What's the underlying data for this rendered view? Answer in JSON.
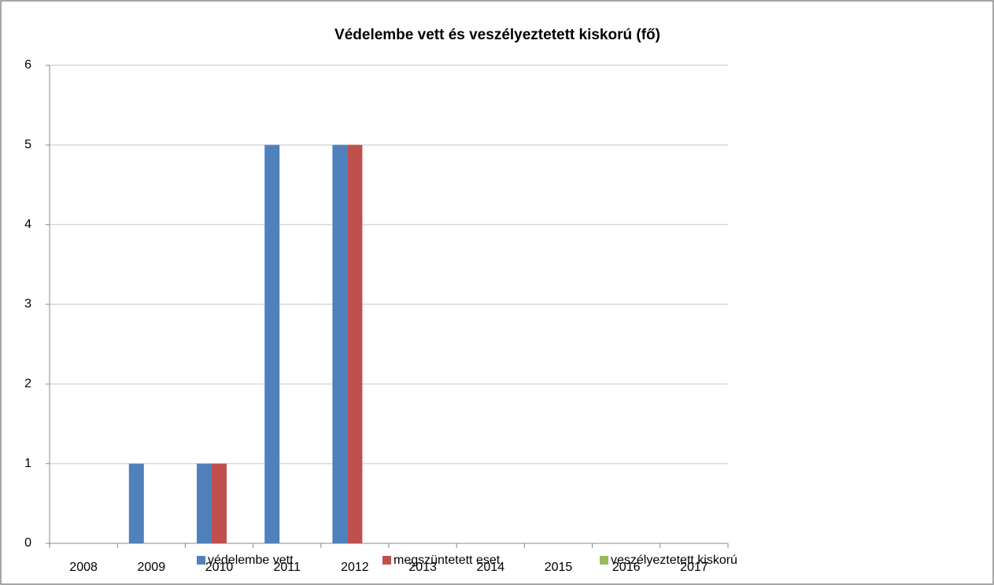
{
  "chart_data": {
    "type": "bar",
    "title": "Védelembe vett és veszélyeztetett kiskorú (fő)",
    "categories": [
      "2008",
      "2009",
      "2010",
      "2011",
      "2012",
      "2013",
      "2014",
      "2015",
      "2016",
      "2017"
    ],
    "series": [
      {
        "name": "védelembe vett",
        "color": "#4f81bd",
        "values": [
          0,
          1,
          1,
          5,
          5,
          0,
          0,
          0,
          0,
          0
        ]
      },
      {
        "name": "megszüntetett eset",
        "color": "#c0504d",
        "values": [
          0,
          0,
          1,
          0,
          5,
          0,
          0,
          0,
          0,
          0
        ]
      },
      {
        "name": "veszélyeztetett kiskorú",
        "color": "#9bbb59",
        "values": [
          0,
          0,
          0,
          0,
          0,
          0,
          0,
          0,
          0,
          0
        ]
      }
    ],
    "ylim": [
      0,
      6
    ],
    "yticks": [
      0,
      1,
      2,
      3,
      4,
      5,
      6
    ],
    "grid": true,
    "legend": "bottom"
  }
}
